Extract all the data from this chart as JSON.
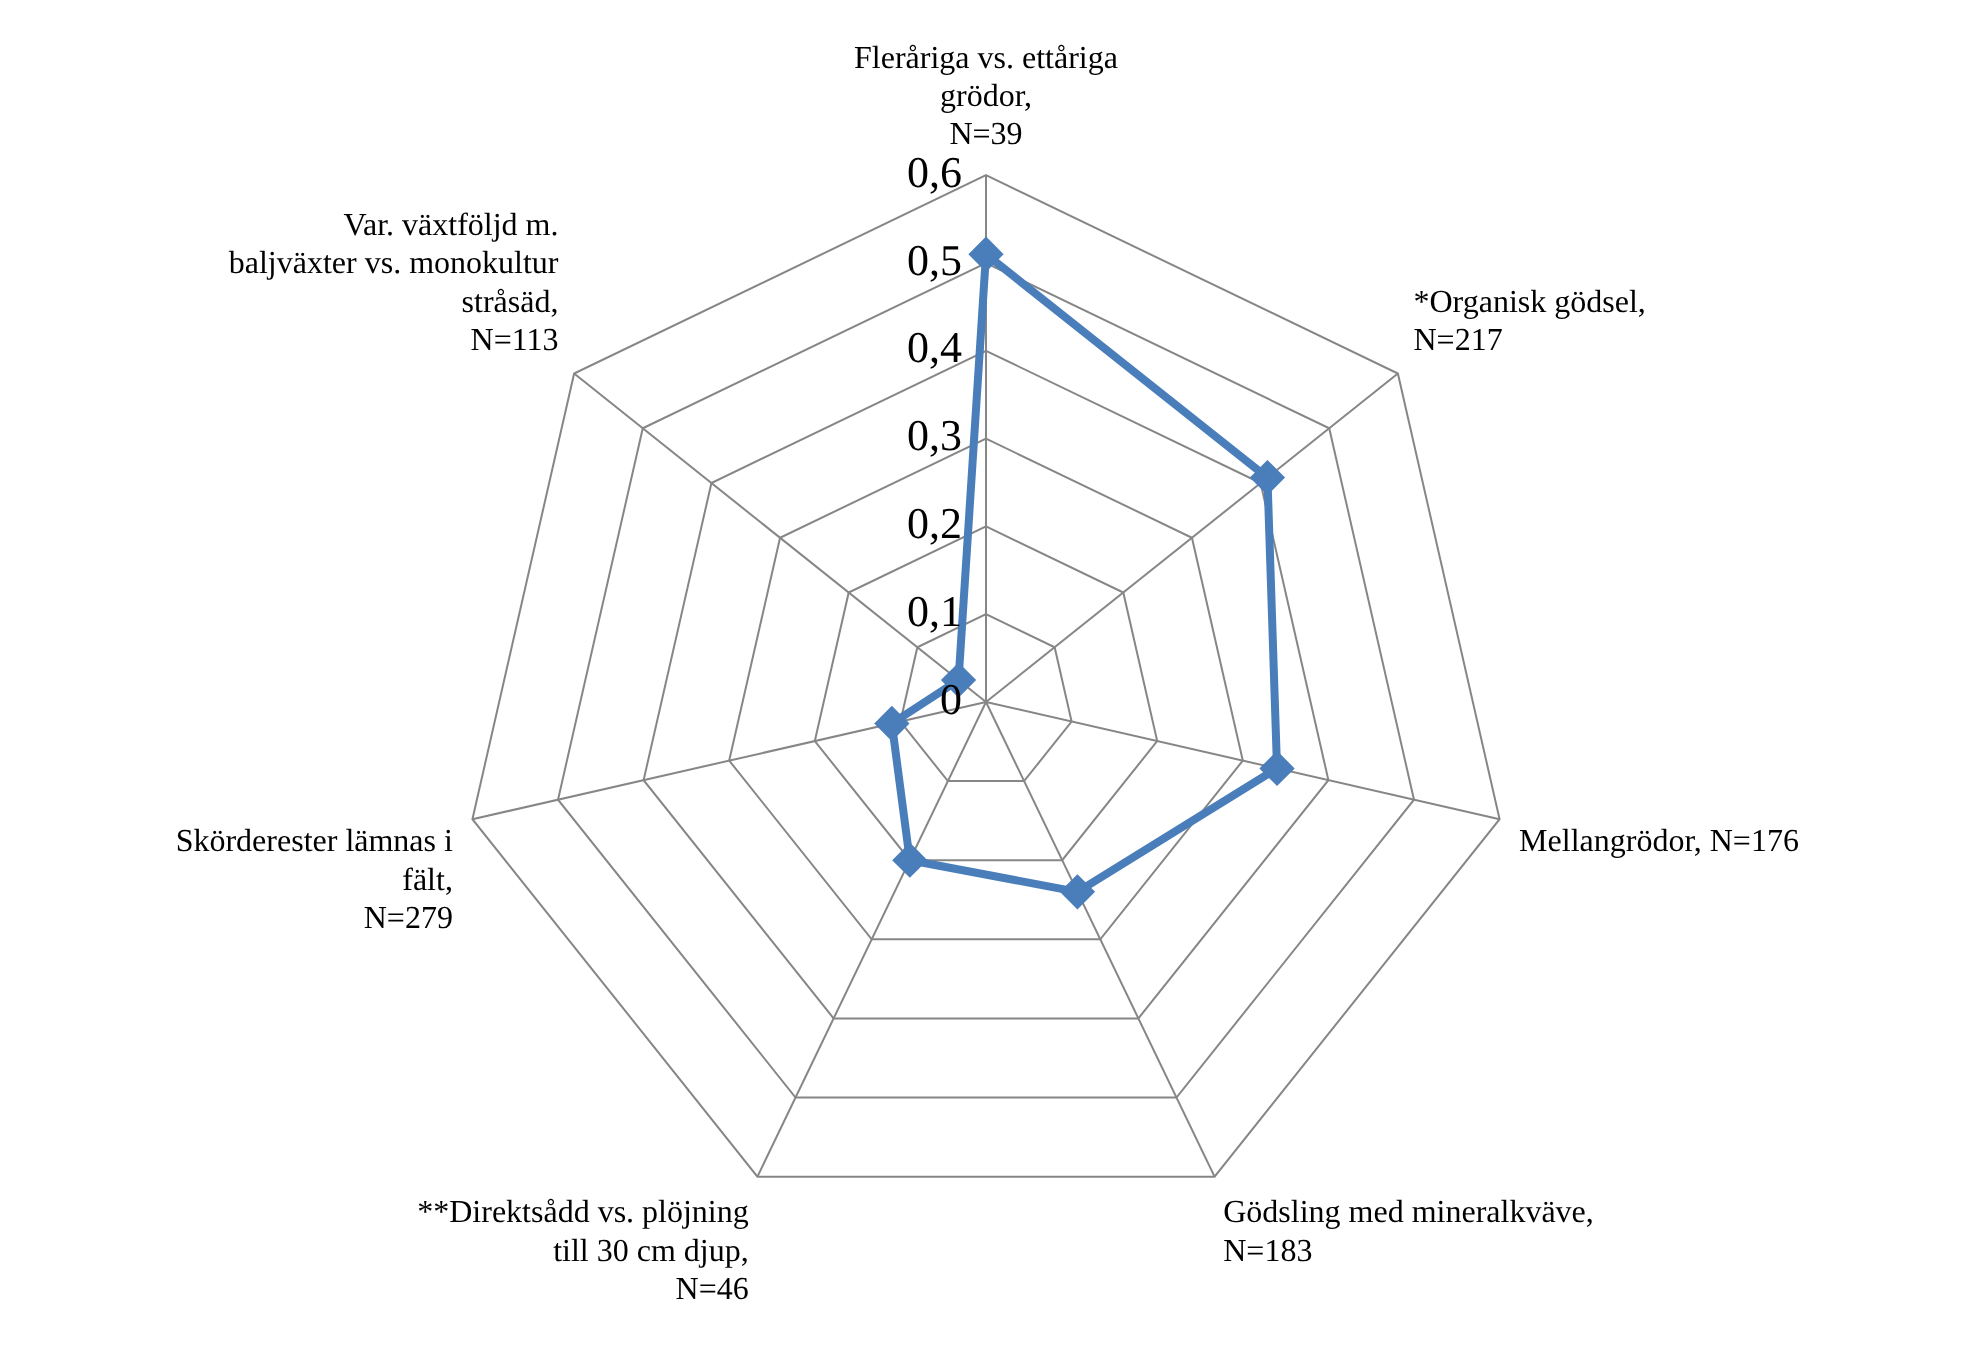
{
  "chart_data": {
    "type": "radar",
    "categories": [
      "Fleråriga vs. ettåriga grödor, N=39",
      "*Organisk gödsel, N=217",
      "Mellangrödor, N=176",
      "Gödsling med mineralkväve, N=183",
      "**Direktsådd vs. plöjning till 30 cm djup, N=46",
      "Skörderester lämnas i fält, N=279",
      "Var. växtföljd m. baljväxter vs. monokultur stråsäd, N=113"
    ],
    "series": [
      {
        "color": "#4a7ebb",
        "values": [
          0.51,
          0.41,
          0.34,
          0.24,
          0.2,
          0.11,
          0.04
        ]
      }
    ],
    "ylim": [
      0,
      0.6
    ],
    "yticks": [
      0,
      {
        "value": 0.1,
        "label": "0,1"
      },
      {
        "value": 0.2,
        "label": "0,2"
      },
      {
        "value": 0.3,
        "label": "0,3"
      },
      {
        "value": 0.4,
        "label": "0,4"
      },
      {
        "value": 0.5,
        "label": "0,5"
      },
      {
        "value": 0.6,
        "label": "0,6"
      }
    ],
    "grid": true,
    "legend": false,
    "marker": "diamond",
    "line_style": "solid"
  }
}
